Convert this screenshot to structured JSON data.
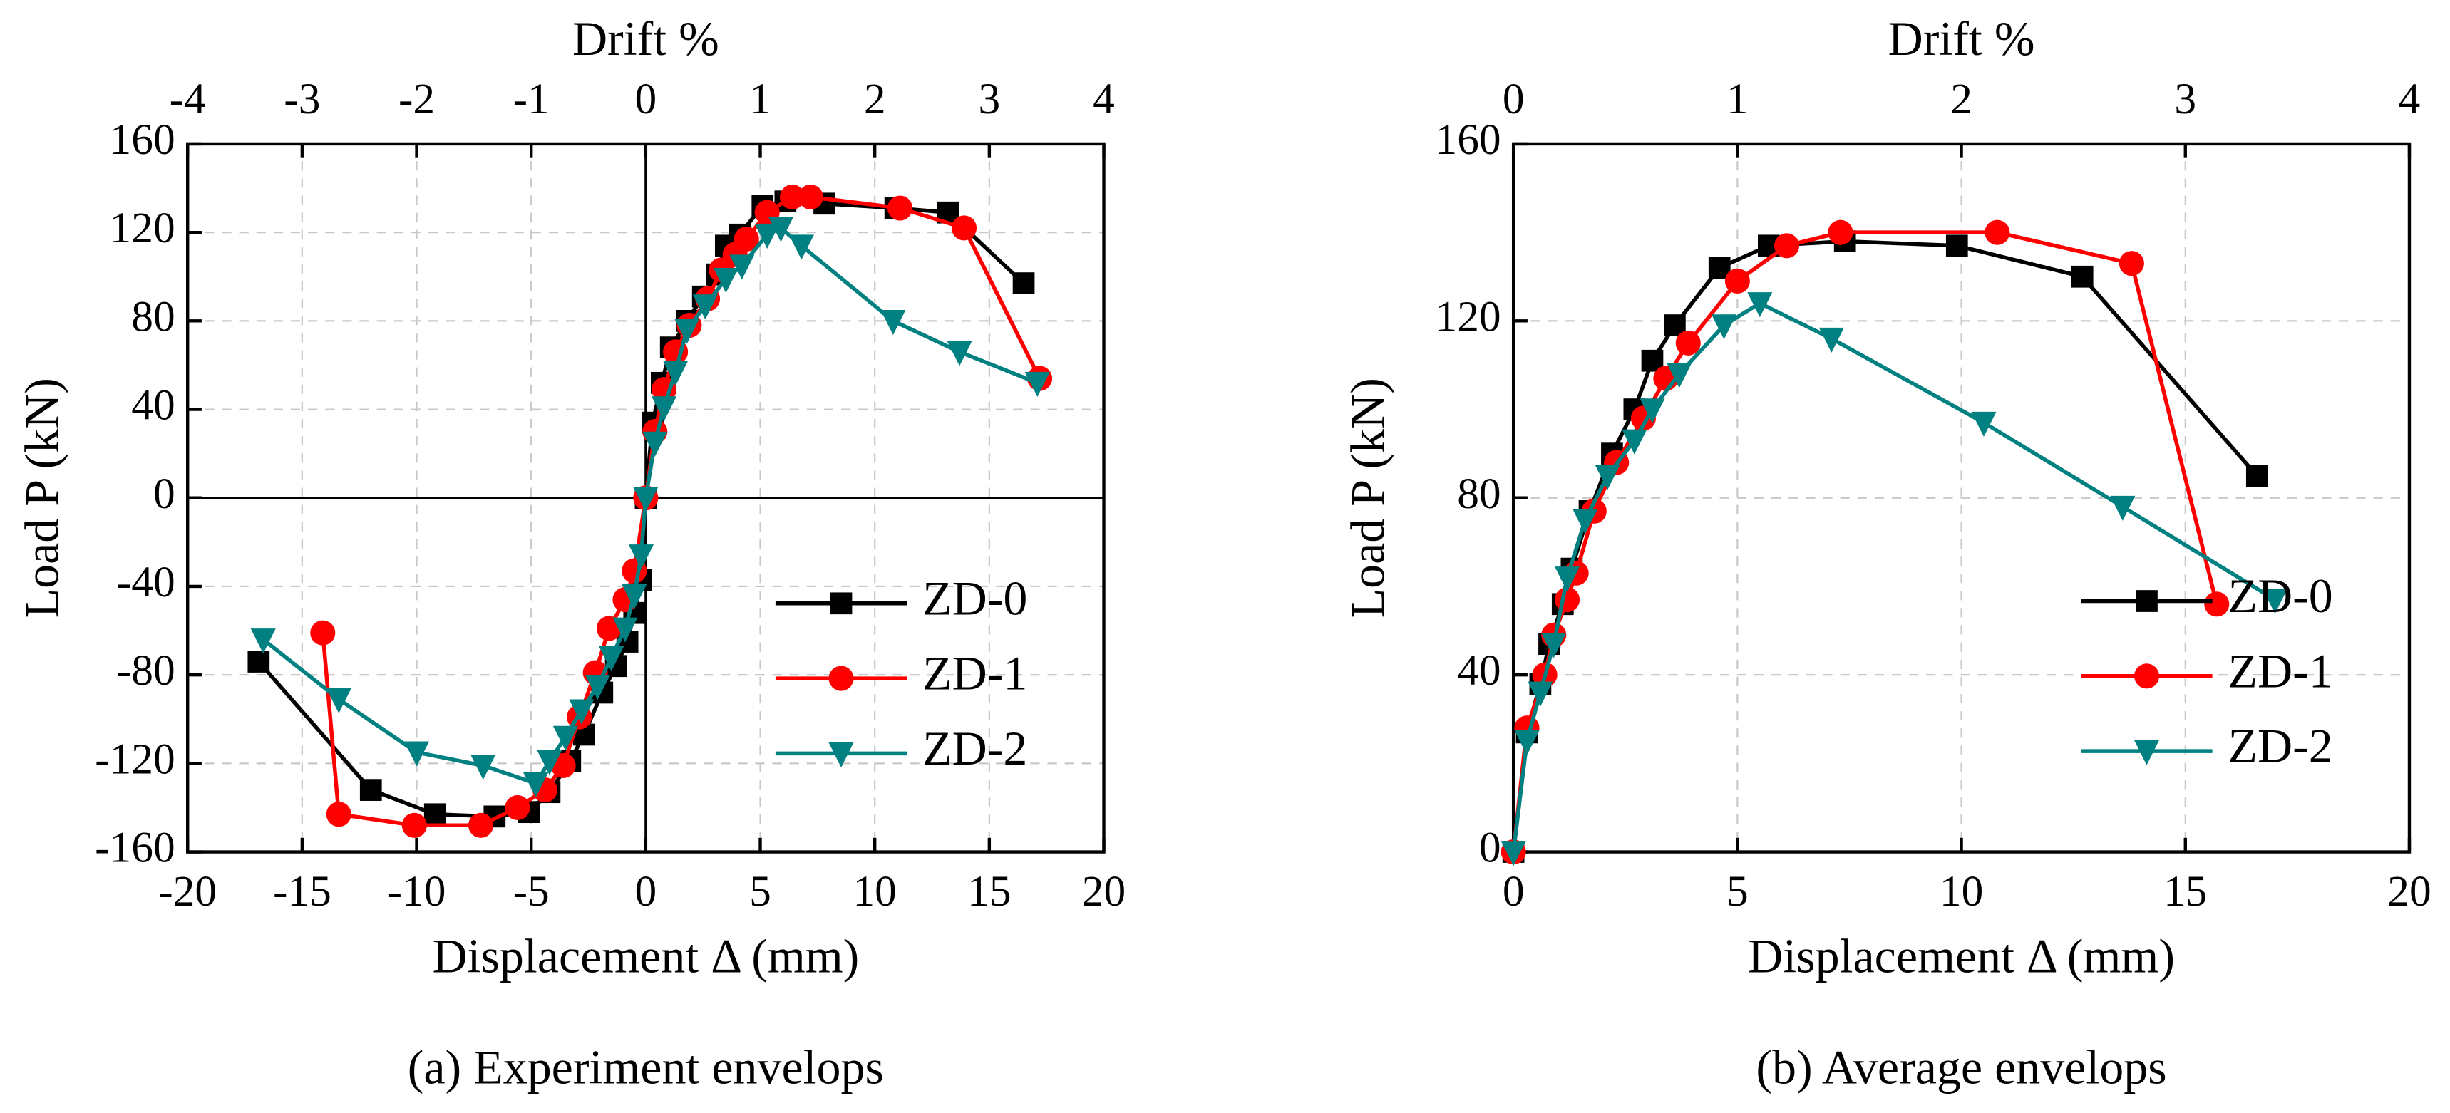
{
  "chart_data": [
    {
      "type": "line",
      "title": "(a) Experiment envelops",
      "xlabel": "Displacement Δ (mm)",
      "ylabel": "Load P (kN)",
      "x2label": "Drift %",
      "xlim": [
        -20,
        20
      ],
      "xticks": [
        -20,
        -15,
        -10,
        -5,
        0,
        5,
        10,
        15,
        20
      ],
      "x2lim": [
        -4,
        4
      ],
      "x2ticks": [
        -4,
        -3,
        -2,
        -1,
        0,
        1,
        2,
        3,
        4
      ],
      "ylim": [
        -160,
        160
      ],
      "yticks": [
        -160,
        -120,
        -80,
        -40,
        0,
        40,
        80,
        120,
        160
      ],
      "grid": true,
      "zero_lines": true,
      "legend": "lower right",
      "series": [
        {
          "name": "ZD-0",
          "color": "#000000",
          "marker": "square",
          "x": [
            -16.9,
            -12.0,
            -9.2,
            -6.6,
            -5.1,
            -4.2,
            -3.3,
            -2.7,
            -1.9,
            -1.3,
            -0.8,
            -0.5,
            -0.2,
            0,
            0.3,
            0.7,
            1.1,
            1.8,
            2.5,
            3.1,
            3.5,
            4.1,
            5.1,
            6.1,
            7.8,
            10.9,
            13.2,
            16.5
          ],
          "values": [
            -74,
            -132,
            -143,
            -144,
            -142,
            -133,
            -119,
            -107,
            -88,
            -76,
            -65,
            -52,
            -37,
            0,
            34,
            52,
            68,
            80,
            91,
            101,
            114,
            119,
            132,
            134,
            133,
            131,
            129,
            97
          ]
        },
        {
          "name": "ZD-1",
          "color": "#ff0000",
          "marker": "circle",
          "x": [
            -14.1,
            -13.4,
            -10.1,
            -7.2,
            -5.6,
            -4.4,
            -3.6,
            -2.9,
            -2.2,
            -1.6,
            -0.9,
            -0.5,
            0,
            0.4,
            0.8,
            1.3,
            1.9,
            2.7,
            3.3,
            3.9,
            4.4,
            5.3,
            6.4,
            7.2,
            11.1,
            13.9,
            17.2
          ],
          "values": [
            -61,
            -143,
            -148,
            -148,
            -140,
            -132,
            -121,
            -99,
            -79,
            -59,
            -46,
            -33,
            0,
            30,
            49,
            66,
            78,
            90,
            103,
            110,
            117,
            129,
            136,
            136,
            131,
            122,
            54
          ]
        },
        {
          "name": "ZD-2",
          "color": "#008080",
          "marker": "triangle-down",
          "x": [
            -16.7,
            -13.4,
            -10.0,
            -7.1,
            -4.8,
            -4.2,
            -3.5,
            -2.8,
            -2.1,
            -1.5,
            -0.9,
            -0.5,
            -0.2,
            0,
            0.4,
            0.8,
            1.3,
            1.8,
            2.6,
            3.5,
            4.2,
            5.3,
            5.9,
            6.8,
            10.8,
            13.7,
            17.1
          ],
          "values": [
            -64,
            -91,
            -115,
            -121,
            -129,
            -119,
            -108,
            -96,
            -85,
            -72,
            -59,
            -44,
            -26,
            0,
            25,
            41,
            57,
            76,
            87,
            99,
            105,
            119,
            122,
            114,
            80,
            66,
            52
          ]
        }
      ]
    },
    {
      "type": "line",
      "title": "(b) Average envelops",
      "xlabel": "Displacement Δ (mm)",
      "ylabel": "Load P (kN)",
      "x2label": "Drift %",
      "xlim": [
        0,
        20
      ],
      "xticks": [
        0,
        5,
        10,
        15,
        20
      ],
      "x2lim": [
        0,
        4
      ],
      "x2ticks": [
        0,
        1,
        2,
        3,
        4
      ],
      "ylim": [
        0,
        160
      ],
      "yticks": [
        0,
        40,
        80,
        120,
        160
      ],
      "grid": true,
      "zero_lines": false,
      "legend": "center right",
      "series": [
        {
          "name": "ZD-0",
          "color": "#000000",
          "marker": "square",
          "x": [
            0,
            0.3,
            0.6,
            0.8,
            1.1,
            1.3,
            1.7,
            2.2,
            2.7,
            3.1,
            3.6,
            4.6,
            5.7,
            7.4,
            9.9,
            12.7,
            16.6
          ],
          "values": [
            0,
            27,
            38,
            47,
            56,
            64,
            77,
            90,
            100,
            111,
            119,
            132,
            137,
            138,
            137,
            130,
            85
          ]
        },
        {
          "name": "ZD-1",
          "color": "#ff0000",
          "marker": "circle",
          "x": [
            0,
            0.3,
            0.7,
            0.9,
            1.2,
            1.4,
            1.8,
            2.3,
            2.9,
            3.4,
            3.9,
            5.0,
            6.1,
            7.3,
            10.8,
            13.8,
            15.7
          ],
          "values": [
            0,
            28,
            40,
            49,
            57,
            63,
            77,
            88,
            98,
            107,
            115,
            129,
            137,
            140,
            140,
            133,
            56
          ]
        },
        {
          "name": "ZD-2",
          "color": "#008080",
          "marker": "triangle-down",
          "x": [
            0,
            0.3,
            0.6,
            0.9,
            1.2,
            1.6,
            2.1,
            2.7,
            3.1,
            3.7,
            4.7,
            5.5,
            7.1,
            10.5,
            13.6,
            17.0
          ],
          "values": [
            0,
            25,
            36,
            47,
            62,
            75,
            85,
            93,
            100,
            108,
            119,
            124,
            116,
            97,
            78,
            57
          ]
        }
      ]
    }
  ]
}
